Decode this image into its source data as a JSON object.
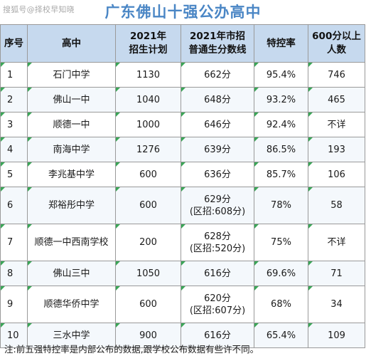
{
  "watermark": "搜狐号@择校早知晓",
  "title": "广东佛山十强公办高中",
  "headers": {
    "no": "序号",
    "school": "高中",
    "plan_line1": "2021年",
    "plan_line2": "招生计划",
    "score_line1": "2021年市招",
    "score_line2": "普通生分数线",
    "control": "特控率",
    "over600_line1": "600分以上",
    "over600_line2": "人数"
  },
  "rows": [
    {
      "no": "1",
      "school": "石门中学",
      "plan": "1130",
      "score": "662分",
      "score_sub": "",
      "control": "95.4%",
      "over600": "746"
    },
    {
      "no": "2",
      "school": "佛山一中",
      "plan": "1040",
      "score": "648分",
      "score_sub": "",
      "control": "93.2%",
      "over600": "465"
    },
    {
      "no": "3",
      "school": "顺德一中",
      "plan": "1000",
      "score": "646分",
      "score_sub": "",
      "control": "92.4%",
      "over600": "不详"
    },
    {
      "no": "4",
      "school": "南海中学",
      "plan": "1276",
      "score": "639分",
      "score_sub": "",
      "control": "86.5%",
      "over600": "193"
    },
    {
      "no": "5",
      "school": "李兆基中学",
      "plan": "600",
      "score": "636分",
      "score_sub": "",
      "control": "85.7%",
      "over600": "106"
    },
    {
      "no": "6",
      "school": "郑裕彤中学",
      "plan": "600",
      "score": "629分",
      "score_sub": "(区招:608分)",
      "control": "78%",
      "over600": "58"
    },
    {
      "no": "7",
      "school": "顺德一中西南学校",
      "plan": "200",
      "score": "628分",
      "score_sub": "(区招:520分)",
      "control": "75%",
      "over600": "不详"
    },
    {
      "no": "8",
      "school": "佛山三中",
      "plan": "1050",
      "score": "616分",
      "score_sub": "",
      "control": "69.6%",
      "over600": "71"
    },
    {
      "no": "9",
      "school": "顺德华侨中学",
      "plan": "600",
      "score": "620分",
      "score_sub": "(区招:607分)",
      "control": "68%",
      "over600": "34"
    },
    {
      "no": "10",
      "school": "三水中学",
      "plan": "900",
      "score": "616分",
      "score_sub": "",
      "control": "65.4%",
      "over600": "109"
    }
  ],
  "note": "注:前五强特控率是内部公布的数据,跟学校公布数据有些许不同。"
}
